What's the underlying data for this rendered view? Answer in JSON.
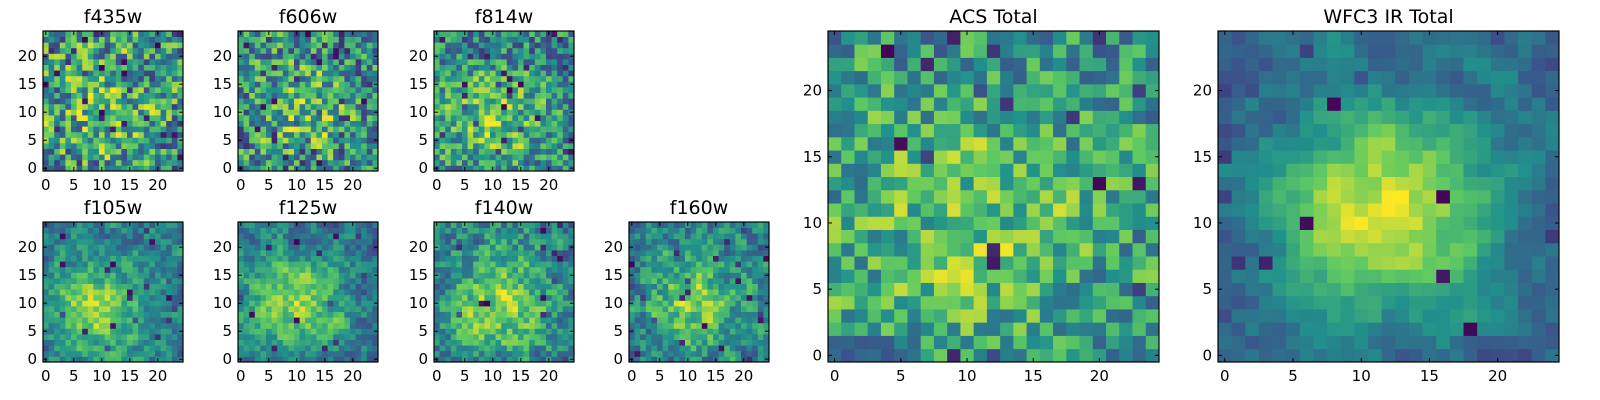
{
  "figure": {
    "colormap": "viridis",
    "colormap_stops": [
      "#440154",
      "#3b528b",
      "#21918c",
      "#5ec962",
      "#fde725"
    ],
    "frame_color": "#000000"
  },
  "chart_data": [
    {
      "id": "f435w",
      "type": "heatmap",
      "title": "f435w",
      "xlim": [
        -0.5,
        24.5
      ],
      "ylim": [
        -0.5,
        24.5
      ],
      "xticks": [
        0,
        5,
        10,
        15,
        20
      ],
      "yticks": [
        0,
        5,
        10,
        15,
        20
      ],
      "grid": false,
      "legend": "none",
      "pattern": {
        "seed": 11,
        "noise": 0.55,
        "smooth": 0.2,
        "hotspot": [
          10,
          10
        ],
        "hot_amp": 0.2,
        "sigma": 8,
        "dark_rate": 0.07
      }
    },
    {
      "id": "f606w",
      "type": "heatmap",
      "title": "f606w",
      "xlim": [
        -0.5,
        24.5
      ],
      "ylim": [
        -0.5,
        24.5
      ],
      "xticks": [
        0,
        5,
        10,
        15,
        20
      ],
      "yticks": [
        0,
        5,
        10,
        15,
        20
      ],
      "grid": false,
      "legend": "none",
      "pattern": {
        "seed": 23,
        "noise": 0.55,
        "smooth": 0.25,
        "hotspot": [
          11,
          10
        ],
        "hot_amp": 0.25,
        "sigma": 7,
        "dark_rate": 0.07
      }
    },
    {
      "id": "f814w",
      "type": "heatmap",
      "title": "f814w",
      "xlim": [
        -0.5,
        24.5
      ],
      "ylim": [
        -0.5,
        24.5
      ],
      "xticks": [
        0,
        5,
        10,
        15,
        20
      ],
      "yticks": [
        0,
        5,
        10,
        15,
        20
      ],
      "grid": false,
      "legend": "none",
      "pattern": {
        "seed": 37,
        "noise": 0.5,
        "smooth": 0.3,
        "hotspot": [
          10,
          9
        ],
        "hot_amp": 0.3,
        "sigma": 7,
        "dark_rate": 0.06
      }
    },
    {
      "id": "f105w",
      "type": "heatmap",
      "title": "f105w",
      "xlim": [
        -0.5,
        24.5
      ],
      "ylim": [
        -0.5,
        24.5
      ],
      "xticks": [
        0,
        5,
        10,
        15,
        20
      ],
      "yticks": [
        0,
        5,
        10,
        15,
        20
      ],
      "grid": false,
      "legend": "none",
      "pattern": {
        "seed": 41,
        "noise": 0.4,
        "smooth": 0.55,
        "hotspot": [
          9,
          9
        ],
        "hot_amp": 0.45,
        "sigma": 6,
        "dark_rate": 0.03
      }
    },
    {
      "id": "f125w",
      "type": "heatmap",
      "title": "f125w",
      "xlim": [
        -0.5,
        24.5
      ],
      "ylim": [
        -0.5,
        24.5
      ],
      "xticks": [
        0,
        5,
        10,
        15,
        20
      ],
      "yticks": [
        0,
        5,
        10,
        15,
        20
      ],
      "grid": false,
      "legend": "none",
      "pattern": {
        "seed": 53,
        "noise": 0.4,
        "smooth": 0.55,
        "hotspot": [
          10,
          10
        ],
        "hot_amp": 0.4,
        "sigma": 6,
        "dark_rate": 0.03
      }
    },
    {
      "id": "f140w",
      "type": "heatmap",
      "title": "f140w",
      "xlim": [
        -0.5,
        24.5
      ],
      "ylim": [
        -0.5,
        24.5
      ],
      "xticks": [
        0,
        5,
        10,
        15,
        20
      ],
      "yticks": [
        0,
        5,
        10,
        15,
        20
      ],
      "grid": false,
      "legend": "none",
      "pattern": {
        "seed": 67,
        "noise": 0.45,
        "smooth": 0.5,
        "hotspot": [
          11,
          10
        ],
        "hot_amp": 0.4,
        "sigma": 7,
        "dark_rate": 0.02
      }
    },
    {
      "id": "f160w",
      "type": "heatmap",
      "title": "f160w",
      "xlim": [
        -0.5,
        24.5
      ],
      "ylim": [
        -0.5,
        24.5
      ],
      "xticks": [
        0,
        5,
        10,
        15,
        20
      ],
      "yticks": [
        0,
        5,
        10,
        15,
        20
      ],
      "grid": false,
      "legend": "none",
      "pattern": {
        "seed": 79,
        "noise": 0.45,
        "smooth": 0.5,
        "hotspot": [
          11,
          10
        ],
        "hot_amp": 0.4,
        "sigma": 6,
        "dark_rate": 0.05
      }
    },
    {
      "id": "acs-total",
      "type": "heatmap",
      "title": "ACS Total",
      "xlim": [
        -0.5,
        24.5
      ],
      "ylim": [
        -0.5,
        24.5
      ],
      "xticks": [
        0,
        5,
        10,
        15,
        20
      ],
      "yticks": [
        0,
        5,
        10,
        15,
        20
      ],
      "grid": false,
      "legend": "none",
      "pattern": {
        "seed": 97,
        "noise": 0.45,
        "smooth": 0.3,
        "hotspot": [
          10,
          10
        ],
        "hot_amp": 0.25,
        "sigma": 9,
        "dark_rate": 0.035
      }
    },
    {
      "id": "wfc3-ir-total",
      "type": "heatmap",
      "title": "WFC3 IR Total",
      "xlim": [
        -0.5,
        24.5
      ],
      "ylim": [
        -0.5,
        24.5
      ],
      "xticks": [
        0,
        5,
        10,
        15,
        20
      ],
      "yticks": [
        0,
        5,
        10,
        15,
        20
      ],
      "grid": false,
      "legend": "none",
      "pattern": {
        "seed": 101,
        "noise": 0.3,
        "smooth": 0.7,
        "hotspot": [
          12,
          11
        ],
        "hot_amp": 0.65,
        "sigma": 5.5,
        "dark_rate": 0.02
      }
    }
  ]
}
